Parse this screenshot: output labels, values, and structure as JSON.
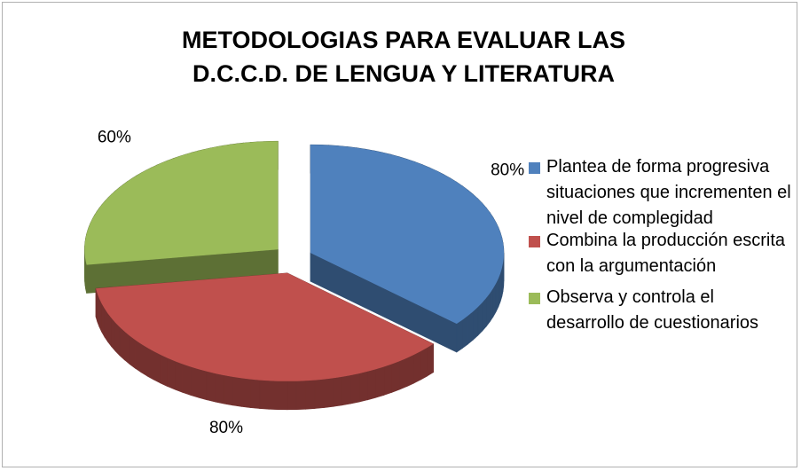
{
  "chart_data": {
    "type": "pie",
    "title": "METODOLOGIAS PARA EVALUAR LAS D.C.C.D. DE LENGUA Y LITERATURA",
    "categories": [
      "Plantea de forma progresiva situaciones que incrementen el nivel de complegidad",
      "Combina la producción escrita con la argumentación",
      "Observa y controla el desarrollo de cuestionarios"
    ],
    "values": [
      80,
      80,
      60
    ],
    "value_labels": [
      "80%",
      "80%",
      "60%"
    ],
    "colors": [
      "#4f81bd",
      "#c0504d",
      "#9bbb59"
    ],
    "legend": "right"
  }
}
